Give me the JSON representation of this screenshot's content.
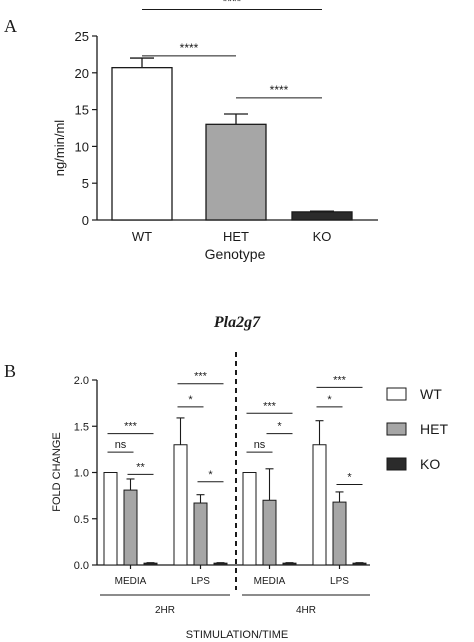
{
  "colors": {
    "wt": "#ffffff",
    "het": "#a6a6a6",
    "ko": "#2b2b2b",
    "stroke": "#1a1a1a"
  },
  "chart_data": [
    {
      "type": "bar",
      "panel_label": "A",
      "xlabel": "Genotype",
      "ylabel": "ng/min/ml",
      "categories": [
        "WT",
        "HET",
        "KO"
      ],
      "values": [
        20.7,
        13.0,
        1.1
      ],
      "errors": [
        1.3,
        1.4,
        0.1
      ],
      "fills": [
        "wt",
        "het",
        "ko"
      ],
      "ylim": [
        0,
        25
      ],
      "yticks": [
        "0",
        "5",
        "10",
        "15",
        "20",
        "25"
      ],
      "significance": [
        {
          "from": 0,
          "to": 1,
          "label": "****",
          "level": 22.3
        },
        {
          "from": 1,
          "to": 2,
          "label": "****",
          "level": 16.6
        },
        {
          "from": 0,
          "to": 2,
          "label": "****",
          "level": 28.6
        }
      ]
    },
    {
      "type": "bar",
      "panel_label": "B",
      "title": "Pla2g7",
      "xlabel": "STIMULATION/TIME",
      "ylabel": "FOLD CHANGE",
      "ylim": [
        0,
        2.0
      ],
      "yticks": [
        "0.0",
        "0.5",
        "1.0",
        "1.5",
        "2.0"
      ],
      "legend": [
        "WT",
        "HET",
        "KO"
      ],
      "groups": [
        {
          "label": "MEDIA",
          "time": "2HR",
          "values": [
            1.0,
            0.81,
            0.02
          ],
          "errors": [
            0.0,
            0.12,
            0.005
          ],
          "sig": [
            {
              "from": 0,
              "to": 1,
              "label": "ns",
              "level": 1.22
            },
            {
              "from": 1,
              "to": 2,
              "label": "**",
              "level": 0.98
            },
            {
              "from": 0,
              "to": 2,
              "label": "***",
              "level": 1.42
            }
          ]
        },
        {
          "label": "LPS",
          "time": "2HR",
          "values": [
            1.3,
            0.67,
            0.02
          ],
          "errors": [
            0.29,
            0.09,
            0.005
          ],
          "sig": [
            {
              "from": 0,
              "to": 1,
              "label": "*",
              "level": 1.71
            },
            {
              "from": 1,
              "to": 2,
              "label": "*",
              "level": 0.9
            },
            {
              "from": 0,
              "to": 2,
              "label": "***",
              "level": 1.96
            }
          ]
        },
        {
          "label": "MEDIA",
          "time": "4HR",
          "values": [
            1.0,
            0.7,
            0.02
          ],
          "errors": [
            0.0,
            0.34,
            0.005
          ],
          "sig": [
            {
              "from": 0,
              "to": 1,
              "label": "ns",
              "level": 1.22
            },
            {
              "from": 1,
              "to": 2,
              "label": "*",
              "level": 1.42
            },
            {
              "from": 0,
              "to": 2,
              "label": "***",
              "level": 1.64
            }
          ]
        },
        {
          "label": "LPS",
          "time": "4HR",
          "values": [
            1.3,
            0.68,
            0.02
          ],
          "errors": [
            0.26,
            0.11,
            0.005
          ],
          "sig": [
            {
              "from": 0,
              "to": 1,
              "label": "*",
              "level": 1.71
            },
            {
              "from": 1,
              "to": 2,
              "label": "*",
              "level": 0.87
            },
            {
              "from": 0,
              "to": 2,
              "label": "***",
              "level": 1.92
            }
          ]
        }
      ],
      "time_labels": [
        "2HR",
        "4HR"
      ]
    }
  ]
}
